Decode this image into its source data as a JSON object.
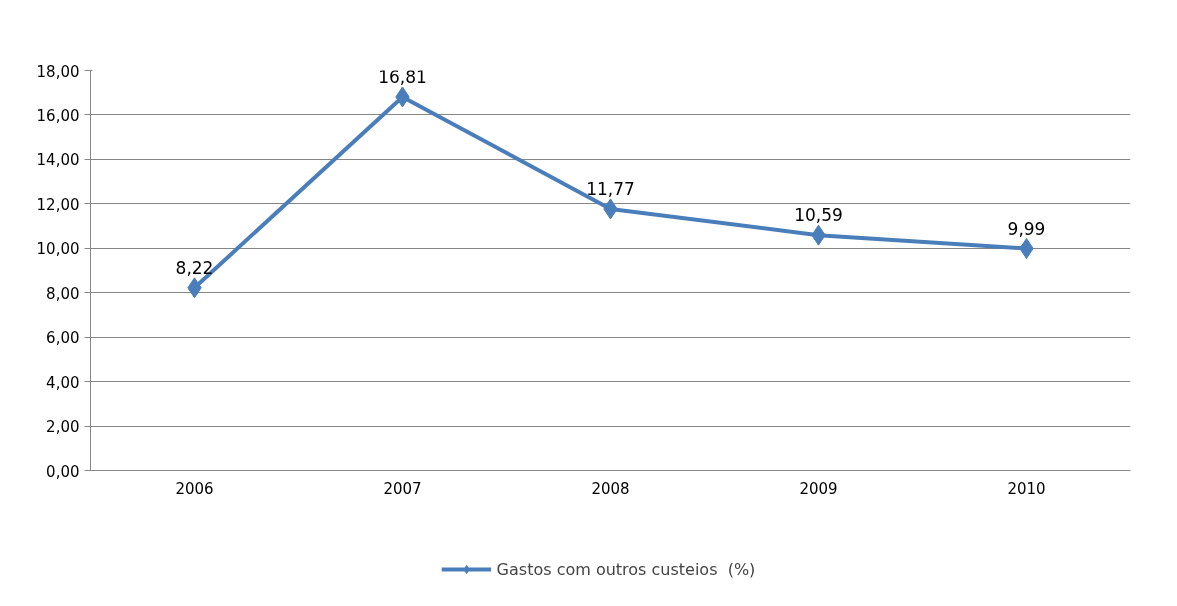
{
  "chart_data": {
    "type": "line",
    "categories": [
      "2006",
      "2007",
      "2008",
      "2009",
      "2010"
    ],
    "series": [
      {
        "name": "Gastos com outros custeios  (%)",
        "color": "#4a7ebb",
        "values": [
          8.22,
          16.81,
          11.77,
          10.59,
          9.99
        ],
        "value_labels": [
          "8,22",
          "16,81",
          "11,77",
          "10,59",
          "9,99"
        ]
      }
    ],
    "ylim": [
      0,
      18
    ],
    "yticks": [
      {
        "value": 0,
        "label": "0,00"
      },
      {
        "value": 2,
        "label": "2,00"
      },
      {
        "value": 4,
        "label": "4,00"
      },
      {
        "value": 6,
        "label": "6,00"
      },
      {
        "value": 8,
        "label": "8,00"
      },
      {
        "value": 10,
        "label": "10,00"
      },
      {
        "value": 12,
        "label": "12,00"
      },
      {
        "value": 14,
        "label": "14,00"
      },
      {
        "value": 16,
        "label": "16,00"
      },
      {
        "value": 18,
        "label": "18,00"
      }
    ],
    "grid": "y",
    "legend": "bottom",
    "marker": "diamond",
    "line_style": "solid"
  }
}
